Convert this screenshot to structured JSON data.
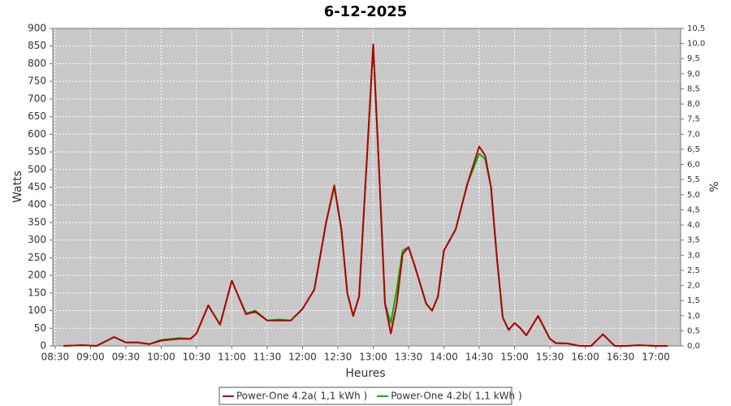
{
  "chart_data": {
    "type": "line",
    "title": "6-12-2025",
    "xlabel": "Heures",
    "ylabel": "Watts",
    "y2label": "%",
    "x": [
      "08:37",
      "08:53",
      "09:05",
      "09:20",
      "09:30",
      "09:40",
      "09:50",
      "10:00",
      "10:15",
      "10:25",
      "10:30",
      "10:40",
      "10:50",
      "11:00",
      "11:12",
      "11:20",
      "11:30",
      "11:40",
      "11:50",
      "12:00",
      "12:10",
      "12:20",
      "12:27",
      "12:33",
      "12:38",
      "12:43",
      "12:48",
      "12:55",
      "13:00",
      "13:05",
      "13:10",
      "13:15",
      "13:20",
      "13:25",
      "13:30",
      "13:35",
      "13:45",
      "13:50",
      "13:55",
      "14:00",
      "14:10",
      "14:20",
      "14:30",
      "14:35",
      "14:40",
      "14:45",
      "14:50",
      "14:55",
      "15:00",
      "15:05",
      "15:10",
      "15:20",
      "15:30",
      "15:35",
      "15:45",
      "15:55",
      "16:05",
      "16:15",
      "16:25",
      "16:35",
      "16:45",
      "17:00",
      "17:10"
    ],
    "series": [
      {
        "name": "Power-One 4.2a( 1,1 kWh )",
        "color": "#b00000",
        "values": [
          0,
          2,
          0,
          25,
          10,
          10,
          5,
          15,
          20,
          20,
          35,
          115,
          60,
          185,
          90,
          97,
          72,
          72,
          72,
          105,
          160,
          350,
          455,
          330,
          150,
          85,
          140,
          550,
          855,
          500,
          120,
          35,
          120,
          260,
          280,
          230,
          120,
          100,
          140,
          270,
          330,
          460,
          565,
          540,
          450,
          250,
          80,
          45,
          65,
          50,
          30,
          85,
          20,
          8,
          7,
          0,
          0,
          33,
          0,
          0,
          2,
          0,
          0
        ]
      },
      {
        "name": "Power-One 4.2b( 1,1 kWh )",
        "color": "#00b000",
        "values": [
          0,
          2,
          0,
          25,
          10,
          10,
          5,
          17,
          22,
          20,
          35,
          115,
          60,
          185,
          92,
          100,
          72,
          75,
          72,
          105,
          160,
          350,
          450,
          330,
          150,
          85,
          140,
          550,
          850,
          500,
          120,
          65,
          160,
          270,
          280,
          230,
          120,
          100,
          140,
          270,
          330,
          460,
          545,
          530,
          450,
          250,
          80,
          45,
          65,
          50,
          30,
          85,
          20,
          8,
          7,
          0,
          0,
          33,
          0,
          0,
          2,
          0,
          0
        ]
      }
    ],
    "xlim": [
      "08:28",
      "17:21"
    ],
    "xticks": [
      "08:30",
      "09:00",
      "09:30",
      "10:00",
      "10:30",
      "11:00",
      "11:30",
      "12:00",
      "12:30",
      "13:00",
      "13:30",
      "14:00",
      "14:30",
      "15:00",
      "15:30",
      "16:00",
      "16:30",
      "17:00"
    ],
    "ylim": [
      0,
      900
    ],
    "yticks": [
      0,
      50,
      100,
      150,
      200,
      250,
      300,
      350,
      400,
      450,
      500,
      550,
      600,
      650,
      700,
      750,
      800,
      850,
      900
    ],
    "y2lim": [
      0,
      10.5
    ],
    "y2ticks": [
      {
        "value": 0,
        "label": "0,0"
      },
      {
        "value": 0.5,
        "label": "0,5"
      },
      {
        "value": 1,
        "label": "1,0"
      },
      {
        "value": 1.5,
        "label": "1,5"
      },
      {
        "value": 2,
        "label": "2,0"
      },
      {
        "value": 2.5,
        "label": "2,5"
      },
      {
        "value": 3,
        "label": "3,0"
      },
      {
        "value": 3.5,
        "label": "3,5"
      },
      {
        "value": 4,
        "label": "4,0"
      },
      {
        "value": 4.5,
        "label": "4,5"
      },
      {
        "value": 5,
        "label": "5,0"
      },
      {
        "value": 5.5,
        "label": "5,5"
      },
      {
        "value": 6,
        "label": "6,0"
      },
      {
        "value": 6.5,
        "label": "6,5"
      },
      {
        "value": 7,
        "label": "7,0"
      },
      {
        "value": 7.5,
        "label": "7,5"
      },
      {
        "value": 8,
        "label": "8,0"
      },
      {
        "value": 8.5,
        "label": "8,5"
      },
      {
        "value": 9,
        "label": "9,0"
      },
      {
        "value": 9.5,
        "label": "9,5"
      },
      {
        "value": 10,
        "label": "10,0"
      },
      {
        "value": 10.5,
        "label": "10,5"
      }
    ],
    "grid": true,
    "legend": "bottom"
  }
}
